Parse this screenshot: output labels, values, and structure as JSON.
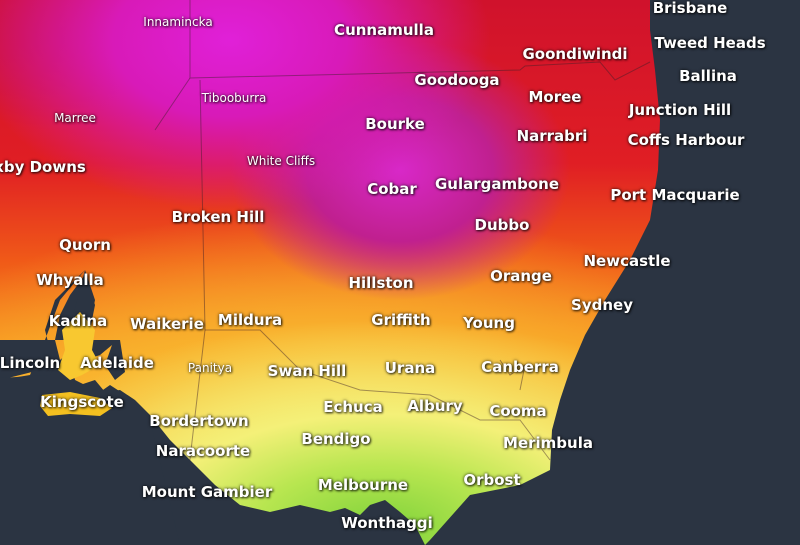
{
  "places": [
    "Brisbane",
    "Cunnamulla",
    "Tweed Heads",
    "Goondiwindi",
    "Ballina",
    "Goodooga",
    "Moree",
    "Junction Hill",
    "Bourke",
    "Narrabri",
    "Coffs Harbour",
    "xby Downs",
    "Gulargambone",
    "Cobar",
    "Port Macquarie",
    "Broken Hill",
    "Dubbo",
    "Quorn",
    "Newcastle",
    "Orange",
    "Whyalla",
    "Hillston",
    "Sydney",
    "Kadina",
    "Mildura",
    "Griffith",
    "Waikerie",
    "Young",
    "Lincoln",
    "Adelaide",
    "Canberra",
    "Urana",
    "Swan Hill",
    "Kingscote",
    "Albury",
    "Echuca",
    "Cooma",
    "Bordertown",
    "Bendigo",
    "Merimbula",
    "Naracoorte",
    "Orbost",
    "Melbourne",
    "Mount Gambier",
    "Wonthaggi"
  ],
  "minor_places": [
    "Innamincka",
    "Marree",
    "Tibooburra",
    "White Cliffs",
    "Panitya"
  ]
}
